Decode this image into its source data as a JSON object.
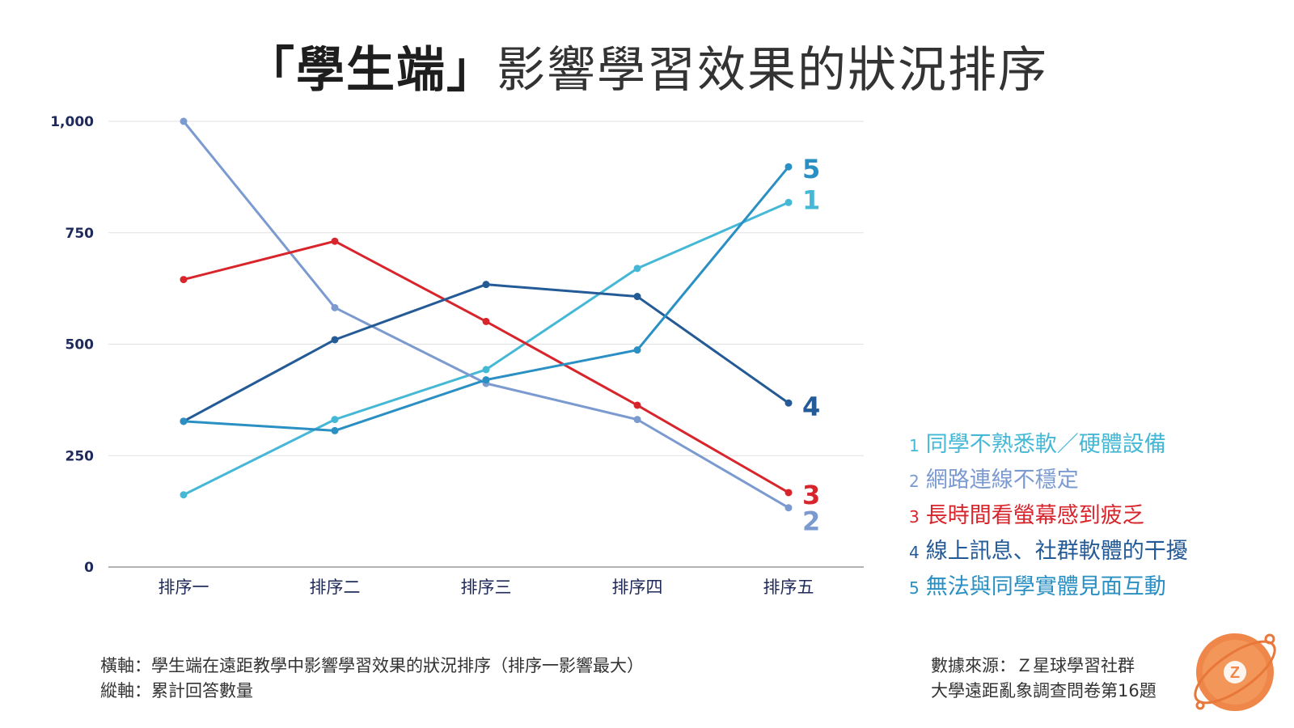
{
  "title": {
    "bold_part": "「學生端」",
    "light_part": "影響學習效果的狀況排序"
  },
  "chart_data": {
    "type": "line",
    "title": "「學生端」影響學習效果的狀況排序",
    "categories": [
      "排序一",
      "排序二",
      "排序三",
      "排序四",
      "排序五"
    ],
    "ylim": [
      0,
      1000
    ],
    "yticks": [
      0,
      250,
      500,
      750,
      1000
    ],
    "ytick_labels": [
      "0",
      "250",
      "500",
      "750",
      "1,000"
    ],
    "grid": true,
    "series": [
      {
        "id": "1",
        "name": "同學不熟悉軟／硬體設備",
        "color": "#45b8d6",
        "values": [
          162,
          331,
          443,
          670,
          818
        ]
      },
      {
        "id": "2",
        "name": "網路連線不穩定",
        "color": "#7b9ad0",
        "values": [
          1000,
          582,
          412,
          331,
          133
        ]
      },
      {
        "id": "3",
        "name": "長時間看螢幕感到疲乏",
        "color": "#d8252c",
        "values": [
          645,
          731,
          551,
          363,
          167
        ]
      },
      {
        "id": "4",
        "name": "線上訊息、社群軟體的干擾",
        "color": "#245a96",
        "values": [
          327,
          510,
          634,
          607,
          368
        ]
      },
      {
        "id": "5",
        "name": "無法與同學實體見面互動",
        "color": "#2a8fc2",
        "values": [
          327,
          306,
          420,
          487,
          898
        ]
      }
    ]
  },
  "notes": {
    "xaxis": "橫軸：學生端在遠距教學中影響學習效果的狀況排序（排序一影響最大）",
    "yaxis": "縱軸：累計回答數量",
    "source": "數據來源：Ｚ星球學習社群",
    "survey": "大學遠距亂象調查問卷第16題"
  },
  "badge": {
    "letter": "Z"
  }
}
